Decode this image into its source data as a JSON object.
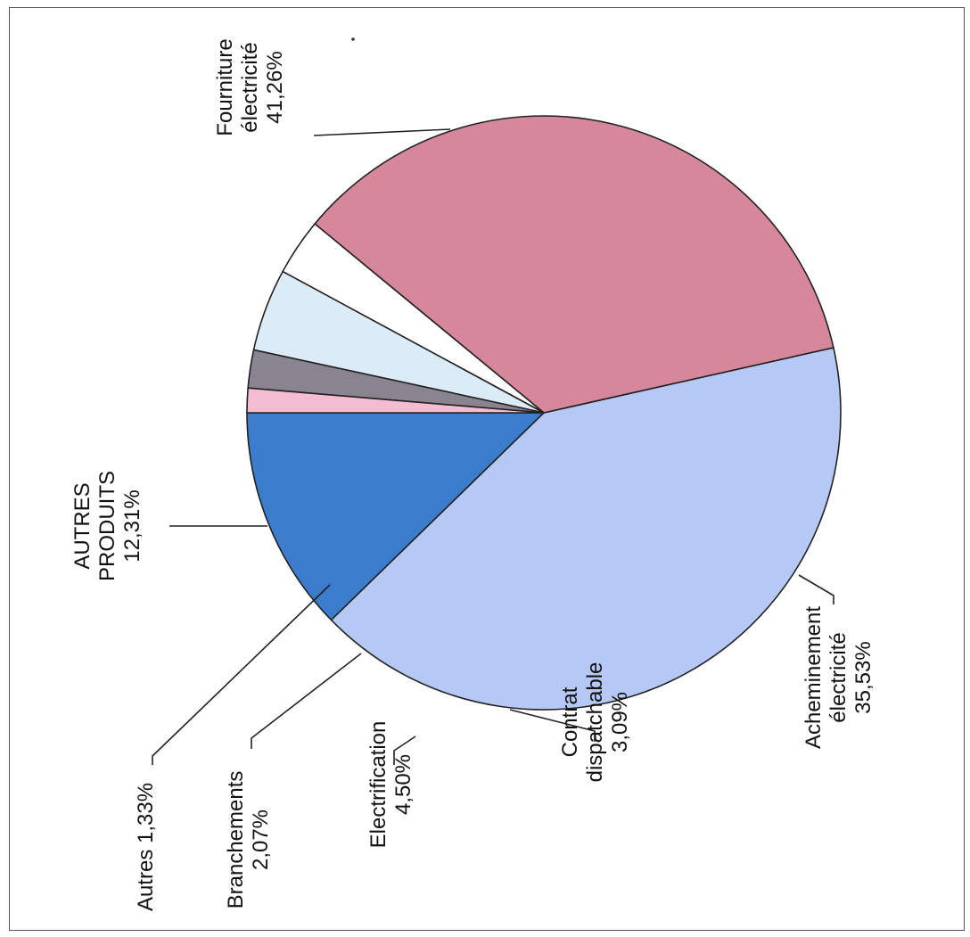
{
  "chart_data": {
    "type": "pie",
    "slices": [
      {
        "id": "autres-produits",
        "label_lines": [
          "AUTRES",
          "PRODUITS",
          "12,31%"
        ],
        "value": 12.31,
        "color": "#3b7ccc"
      },
      {
        "id": "fourniture",
        "label_lines": [
          "Fourniture",
          "électricité",
          "41,26%"
        ],
        "value": 41.26,
        "color": "#b5c9f4"
      },
      {
        "id": "acheminement",
        "label_lines": [
          "Acheminement",
          "électricité",
          "35,53%"
        ],
        "value": 35.53,
        "color": "#d6879c"
      },
      {
        "id": "contrat",
        "label_lines": [
          "Contrat",
          "dispatchable",
          "3,09%"
        ],
        "value": 3.09,
        "color": "#ffffff"
      },
      {
        "id": "electrification",
        "label_lines": [
          "Electrification",
          "4,50%"
        ],
        "value": 4.5,
        "color": "#dcebf8"
      },
      {
        "id": "branchements",
        "label_lines": [
          "Branchements",
          "2,07%"
        ],
        "value": 2.07,
        "color": "#8a8490"
      },
      {
        "id": "autres",
        "label_lines": [
          "Autres 1,33%"
        ],
        "value": 1.33,
        "color": "#f3bcd0"
      }
    ],
    "orientation": "rotated 90° counter-clockwise"
  }
}
